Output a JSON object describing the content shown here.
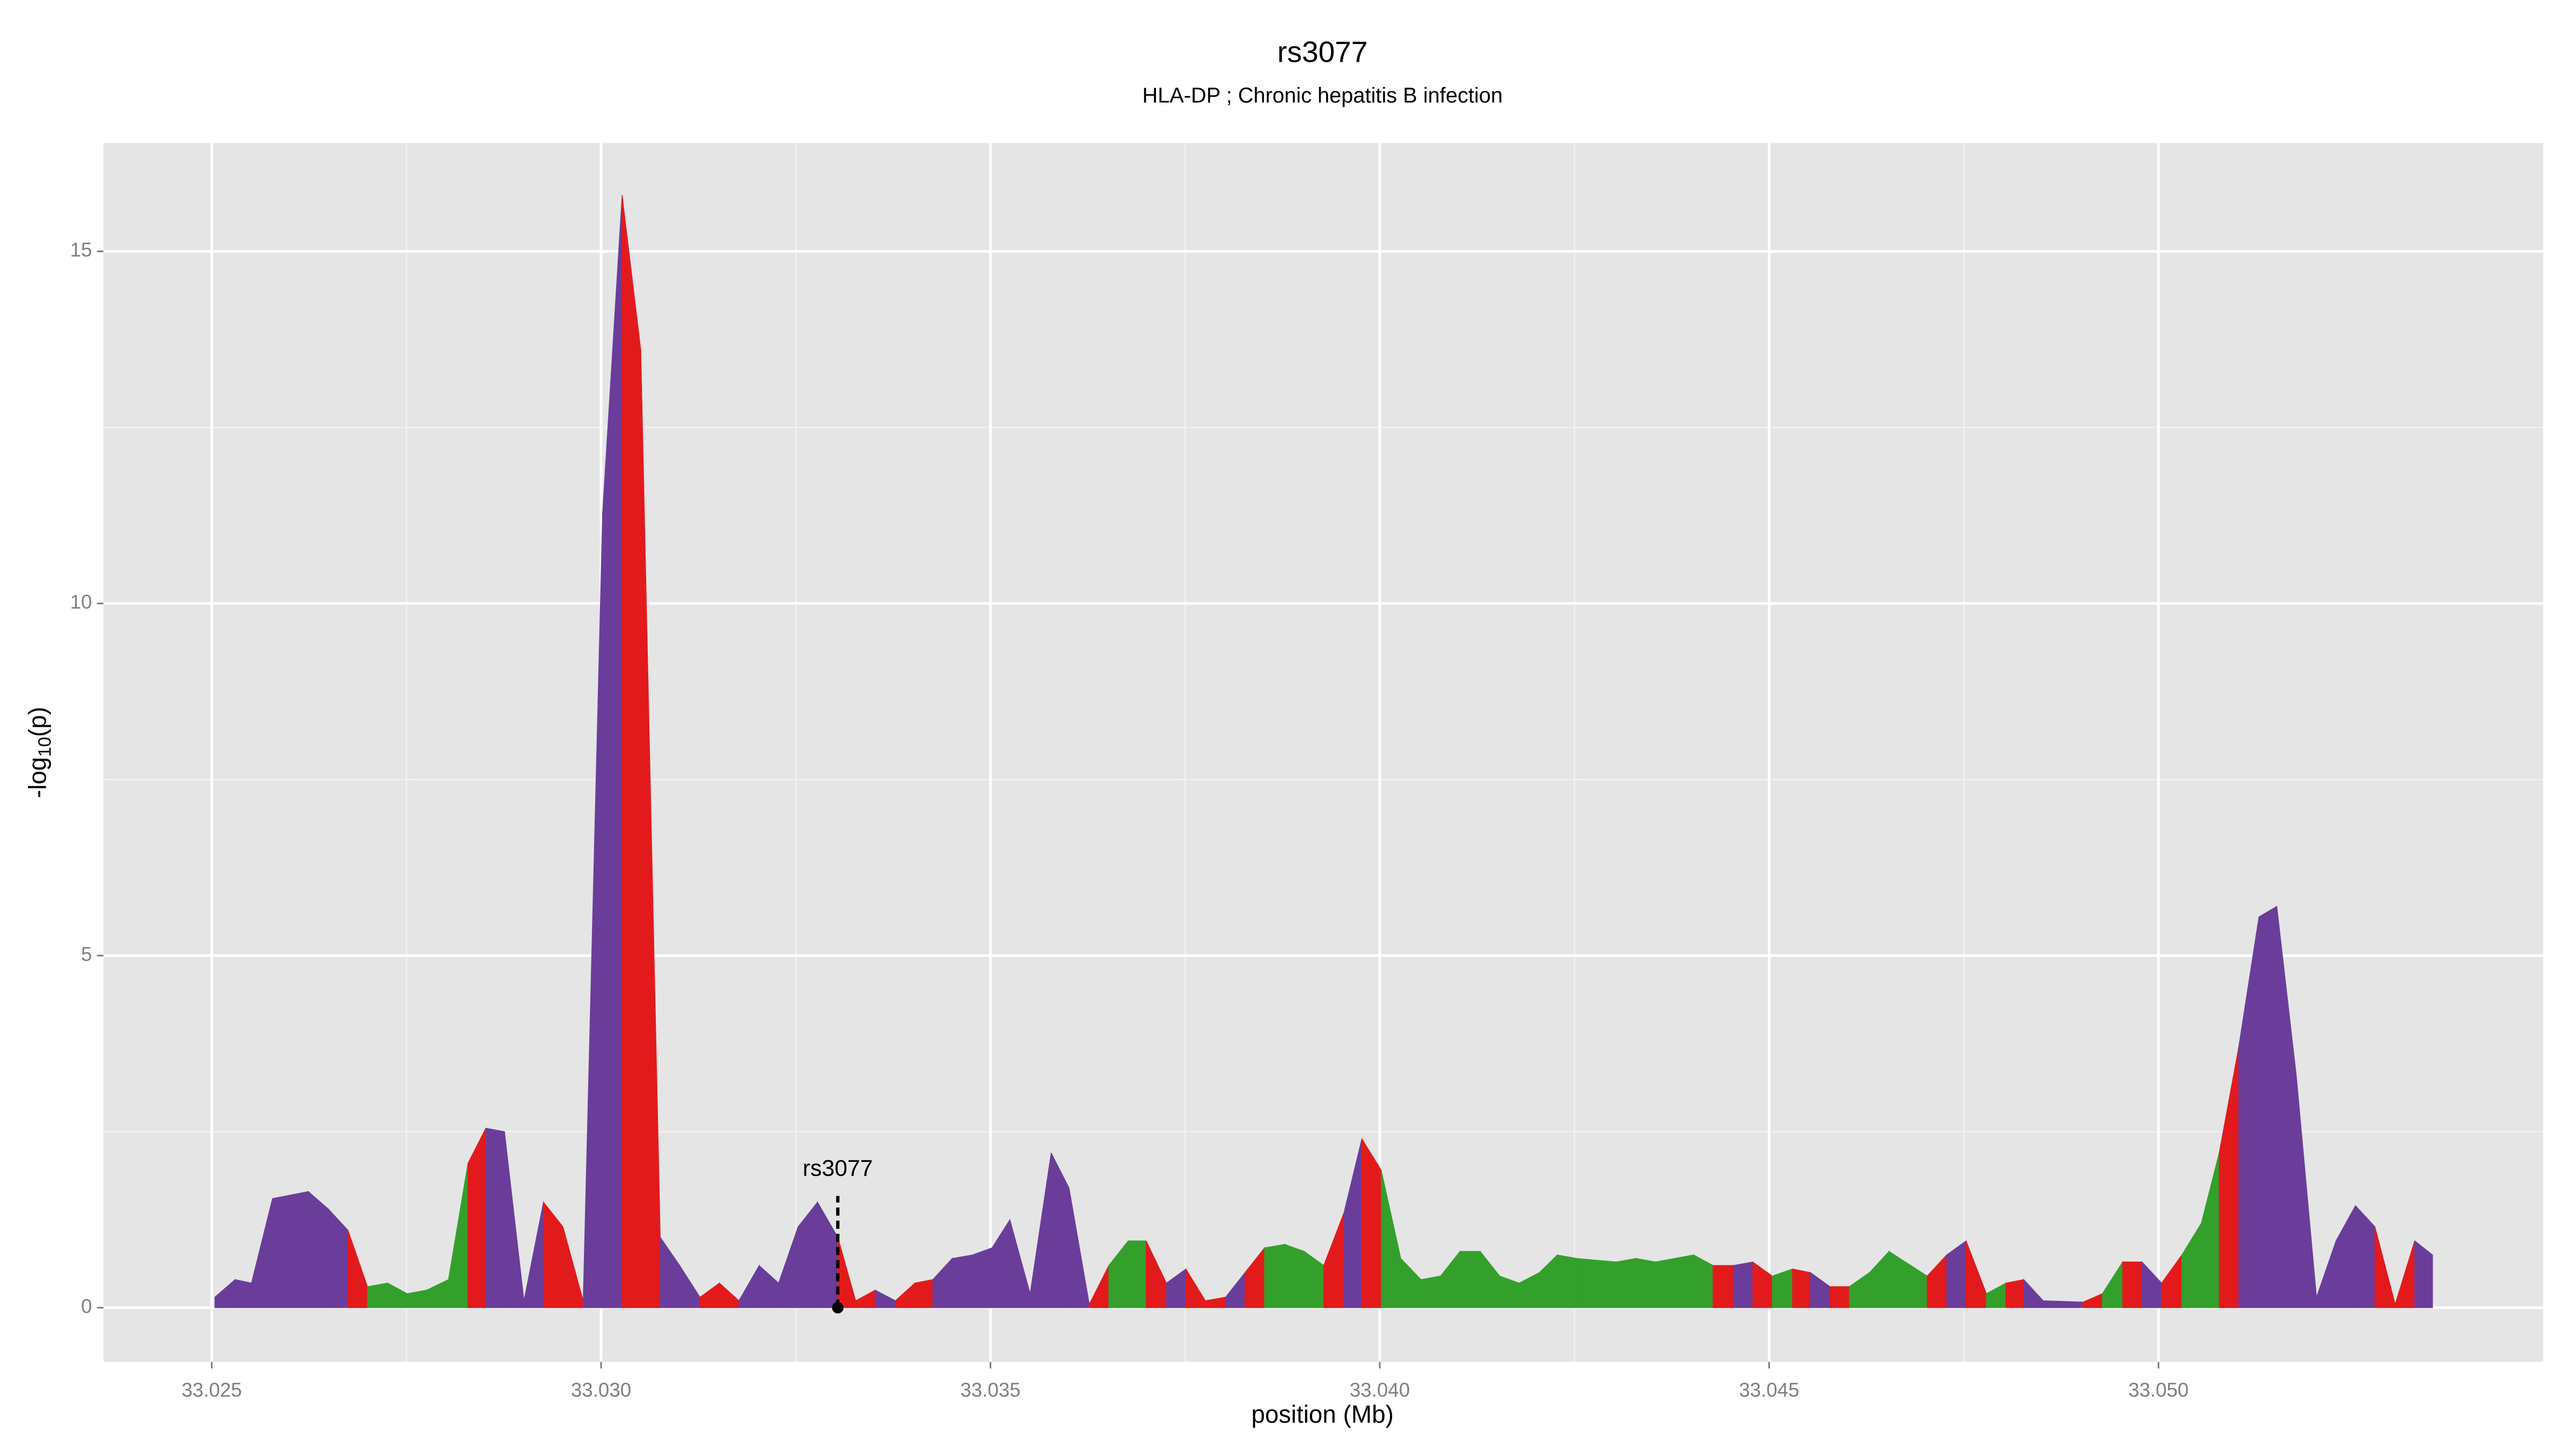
{
  "chart_data": {
    "type": "area",
    "title": "rs3077",
    "subtitle": "HLA-DP ; Chronic hepatitis B infection",
    "xlabel": "position (Mb)",
    "ylabel": {
      "text": "-log",
      "subscript": "10",
      "suffix": "(p)"
    },
    "annotation": {
      "text": "rs3077",
      "x": 33.03304,
      "y": 0
    },
    "xlim": [
      33.02361,
      33.05494
    ],
    "ylim": [
      -0.77,
      16.54
    ],
    "xticks": [
      33.025,
      {
        "value": 33.03,
        "label": "33.030"
      },
      33.035,
      {
        "value": 33.04,
        "label": "33.040"
      },
      33.045,
      {
        "value": 33.05,
        "label": "33.050"
      }
    ],
    "yticks": [
      0,
      5,
      10,
      15
    ],
    "grid": true,
    "x": [
      33.02504,
      33.0253,
      33.02551,
      33.02578,
      33.02624,
      33.0265,
      33.02675,
      33.027,
      33.02726,
      33.02751,
      33.02776,
      33.02804,
      33.02829,
      33.02852,
      33.02876,
      33.02901,
      33.02926,
      33.02951,
      33.02977,
      33.03002,
      33.03027,
      33.03051,
      33.03076,
      33.03101,
      33.03127,
      33.03152,
      33.03177,
      33.03203,
      33.03228,
      33.03253,
      33.03278,
      33.03304,
      33.03327,
      33.03352,
      33.03378,
      33.03403,
      33.03426,
      33.03451,
      33.03477,
      33.03502,
      33.03525,
      33.03551,
      33.03578,
      33.03601,
      33.03627,
      33.03652,
      33.03677,
      33.037,
      33.03726,
      33.03751,
      33.03776,
      33.03802,
      33.03827,
      33.03852,
      33.03878,
      33.03903,
      33.03928,
      33.03954,
      33.03977,
      33.04002,
      33.04027,
      33.04053,
      33.04078,
      33.04103,
      33.04129,
      33.04154,
      33.04179,
      33.04205,
      33.04228,
      33.04253,
      33.04304,
      33.04329,
      33.04354,
      33.04403,
      33.04428,
      33.04454,
      33.04479,
      33.04504,
      33.0453,
      33.04553,
      33.04578,
      33.04603,
      33.04629,
      33.04654,
      33.04703,
      33.04728,
      33.04753,
      33.04779,
      33.04804,
      33.04827,
      33.04852,
      33.04903,
      33.04928,
      33.04954,
      33.04979,
      33.05004,
      33.0503,
      33.05055,
      33.05078,
      33.05103,
      33.05129,
      33.05152,
      33.05177,
      33.05203,
      33.05228,
      33.05253,
      33.05278,
      33.05304,
      33.05329,
      33.05352
    ],
    "values": [
      0.15,
      0.4,
      0.35,
      1.55,
      1.65,
      1.4,
      1.1,
      0.3,
      0.35,
      0.2,
      0.25,
      0.4,
      2.05,
      2.55,
      2.5,
      0.1,
      1.5,
      1.15,
      0.1,
      11.3,
      15.8,
      13.6,
      1.0,
      0.6,
      0.15,
      0.35,
      0.1,
      0.6,
      0.35,
      1.15,
      1.5,
      1.0,
      0.1,
      0.25,
      0.1,
      0.35,
      0.4,
      0.7,
      0.75,
      0.85,
      1.25,
      0.2,
      2.2,
      1.7,
      0.05,
      0.6,
      0.95,
      0.95,
      0.35,
      0.55,
      0.1,
      0.15,
      0.5,
      0.85,
      0.9,
      0.8,
      0.6,
      1.35,
      2.4,
      1.95,
      0.7,
      0.4,
      0.45,
      0.8,
      0.8,
      0.45,
      0.35,
      0.5,
      0.75,
      0.7,
      0.65,
      0.7,
      0.65,
      0.75,
      0.6,
      0.6,
      0.65,
      0.45,
      0.55,
      0.5,
      0.3,
      0.3,
      0.5,
      0.8,
      0.45,
      0.75,
      0.95,
      0.2,
      0.35,
      0.4,
      0.1,
      0.08,
      0.2,
      0.65,
      0.65,
      0.35,
      0.75,
      1.2,
      2.2,
      3.7,
      5.55,
      5.7,
      3.3,
      0.15,
      0.95,
      1.45,
      1.15,
      0.05,
      0.95,
      0.75
    ],
    "segment_colors": [
      "#6a3d9a",
      "#6a3d9a",
      "#6a3d9a",
      "#6a3d9a",
      "#6a3d9a",
      "#6a3d9a",
      "#e31a1c",
      "#33a02c",
      "#33a02c",
      "#33a02c",
      "#33a02c",
      "#33a02c",
      "#e31a1c",
      "#6a3d9a",
      "#6a3d9a",
      "#6a3d9a",
      "#e31a1c",
      "#e31a1c",
      "#6a3d9a",
      "#6a3d9a",
      "#e31a1c",
      "#e31a1c",
      "#6a3d9a",
      "#6a3d9a",
      "#e31a1c",
      "#e31a1c",
      "#6a3d9a",
      "#6a3d9a",
      "#6a3d9a",
      "#6a3d9a",
      "#6a3d9a",
      "#e31a1c",
      "#e31a1c",
      "#6a3d9a",
      "#e31a1c",
      "#e31a1c",
      "#6a3d9a",
      "#6a3d9a",
      "#6a3d9a",
      "#6a3d9a",
      "#6a3d9a",
      "#6a3d9a",
      "#6a3d9a",
      "#6a3d9a",
      "#e31a1c",
      "#33a02c",
      "#33a02c",
      "#e31a1c",
      "#6a3d9a",
      "#e31a1c",
      "#e31a1c",
      "#6a3d9a",
      "#e31a1c",
      "#33a02c",
      "#33a02c",
      "#33a02c",
      "#e31a1c",
      "#6a3d9a",
      "#e31a1c",
      "#33a02c",
      "#33a02c",
      "#33a02c",
      "#33a02c",
      "#33a02c",
      "#33a02c",
      "#33a02c",
      "#33a02c",
      "#33a02c",
      "#33a02c",
      "#33a02c",
      "#33a02c",
      "#33a02c",
      "#33a02c",
      "#33a02c",
      "#e31a1c",
      "#6a3d9a",
      "#e31a1c",
      "#33a02c",
      "#e31a1c",
      "#6a3d9a",
      "#e31a1c",
      "#33a02c",
      "#33a02c",
      "#33a02c",
      "#e31a1c",
      "#6a3d9a",
      "#e31a1c",
      "#33a02c",
      "#e31a1c",
      "#6a3d9a",
      "#6a3d9a",
      "#e31a1c",
      "#33a02c",
      "#e31a1c",
      "#6a3d9a",
      "#e31a1c",
      "#33a02c",
      "#33a02c",
      "#e31a1c",
      "#6a3d9a",
      "#6a3d9a",
      "#6a3d9a",
      "#6a3d9a",
      "#6a3d9a",
      "#6a3d9a",
      "#6a3d9a",
      "#e31a1c",
      "#e31a1c",
      "#6a3d9a"
    ]
  }
}
